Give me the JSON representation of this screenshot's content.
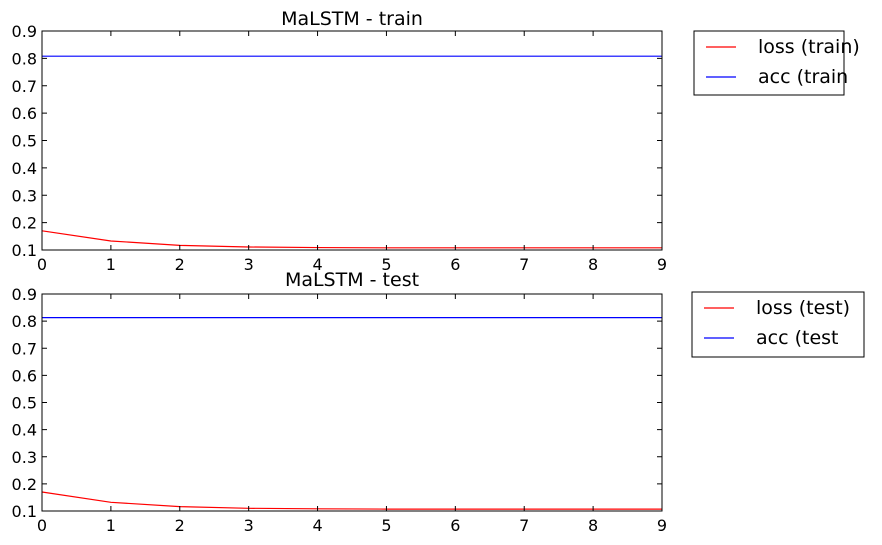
{
  "chart_data": [
    {
      "type": "line",
      "title": "MaLSTM - train",
      "x": [
        0,
        1,
        2,
        3,
        4,
        5,
        6,
        7,
        8,
        9
      ],
      "xlim": [
        0,
        9
      ],
      "ylim": [
        0.1,
        0.9
      ],
      "xticks": [
        "0",
        "1",
        "2",
        "3",
        "4",
        "5",
        "6",
        "7",
        "8",
        "9"
      ],
      "yticks": [
        "0.1",
        "0.2",
        "0.3",
        "0.4",
        "0.5",
        "0.6",
        "0.7",
        "0.8",
        "0.9"
      ],
      "legend_position": "outside-top-right",
      "grid": false,
      "series": [
        {
          "name": "loss (train)",
          "color": "#ff0000",
          "values": [
            0.17,
            0.133,
            0.117,
            0.111,
            0.109,
            0.108,
            0.108,
            0.108,
            0.108,
            0.108
          ]
        },
        {
          "name": "acc (train",
          "color": "#0000ff",
          "values": [
            0.808,
            0.808,
            0.808,
            0.808,
            0.808,
            0.808,
            0.808,
            0.808,
            0.808,
            0.808
          ]
        }
      ]
    },
    {
      "type": "line",
      "title": "MaLSTM - test",
      "x": [
        0,
        1,
        2,
        3,
        4,
        5,
        6,
        7,
        8,
        9
      ],
      "xlim": [
        0,
        9
      ],
      "ylim": [
        0.1,
        0.9
      ],
      "xticks": [
        "0",
        "1",
        "2",
        "3",
        "4",
        "5",
        "6",
        "7",
        "8",
        "9"
      ],
      "yticks": [
        "0.1",
        "0.2",
        "0.3",
        "0.4",
        "0.5",
        "0.6",
        "0.7",
        "0.8",
        "0.9"
      ],
      "legend_position": "outside-top-right",
      "grid": false,
      "series": [
        {
          "name": "loss (test)",
          "color": "#ff0000",
          "values": [
            0.17,
            0.132,
            0.116,
            0.11,
            0.108,
            0.107,
            0.107,
            0.107,
            0.107,
            0.107
          ]
        },
        {
          "name": "acc (test",
          "color": "#0000ff",
          "values": [
            0.813,
            0.813,
            0.813,
            0.813,
            0.813,
            0.813,
            0.813,
            0.813,
            0.813,
            0.813
          ]
        }
      ]
    }
  ]
}
